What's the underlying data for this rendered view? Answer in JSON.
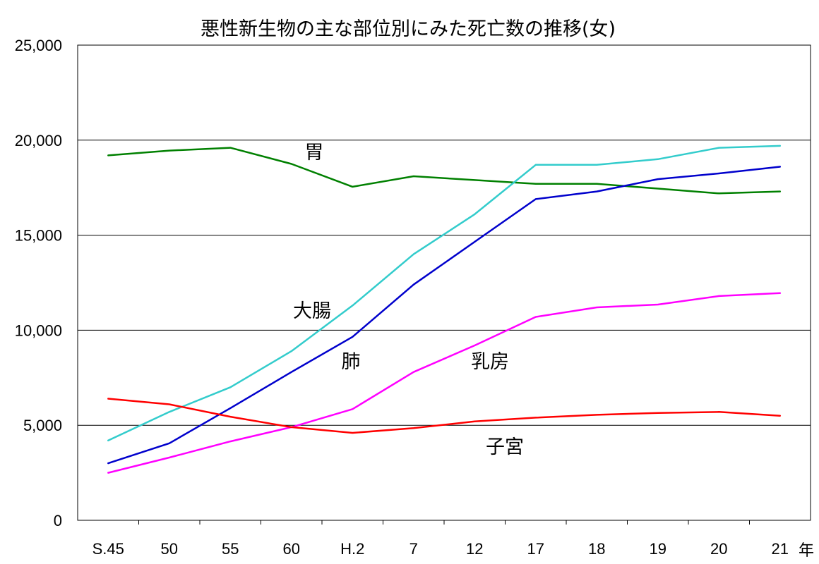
{
  "chart_data": {
    "type": "line",
    "title": "悪性新生物の主な部位別にみた死亡数の推移(女)",
    "x_unit": "年",
    "categories": [
      "S.45",
      "50",
      "55",
      "60",
      "H.2",
      "7",
      "12",
      "17",
      "18",
      "19",
      "20",
      "21"
    ],
    "ylim": [
      0,
      25000
    ],
    "y_ticks": [
      0,
      5000,
      10000,
      15000,
      20000,
      25000
    ],
    "y_tick_labels": [
      "0",
      "5,000",
      "10,000",
      "15,000",
      "20,000",
      "25,000"
    ],
    "grid": "horizontal",
    "series": [
      {
        "name": "胃",
        "color": "#008000",
        "values": [
          19200,
          19450,
          19600,
          18750,
          17550,
          18100,
          17900,
          17700,
          17700,
          17450,
          17200,
          17300
        ]
      },
      {
        "name": "大腸",
        "color": "#33CCCC",
        "values": [
          4200,
          5700,
          7000,
          8900,
          11300,
          14000,
          16100,
          18700,
          18700,
          19000,
          19600,
          19700
        ]
      },
      {
        "name": "肺",
        "color": "#0000CC",
        "values": [
          3000,
          4050,
          5900,
          7800,
          9650,
          12400,
          14650,
          16900,
          17300,
          17950,
          18250,
          18600
        ]
      },
      {
        "name": "乳房",
        "color": "#FF00FF",
        "values": [
          2500,
          3300,
          4150,
          4900,
          5850,
          7800,
          9200,
          10700,
          11200,
          11350,
          11800,
          11950
        ]
      },
      {
        "name": "子宮",
        "color": "#FF0000",
        "values": [
          6400,
          6100,
          5450,
          4900,
          4600,
          4850,
          5200,
          5400,
          5550,
          5650,
          5700,
          5500
        ]
      }
    ]
  }
}
